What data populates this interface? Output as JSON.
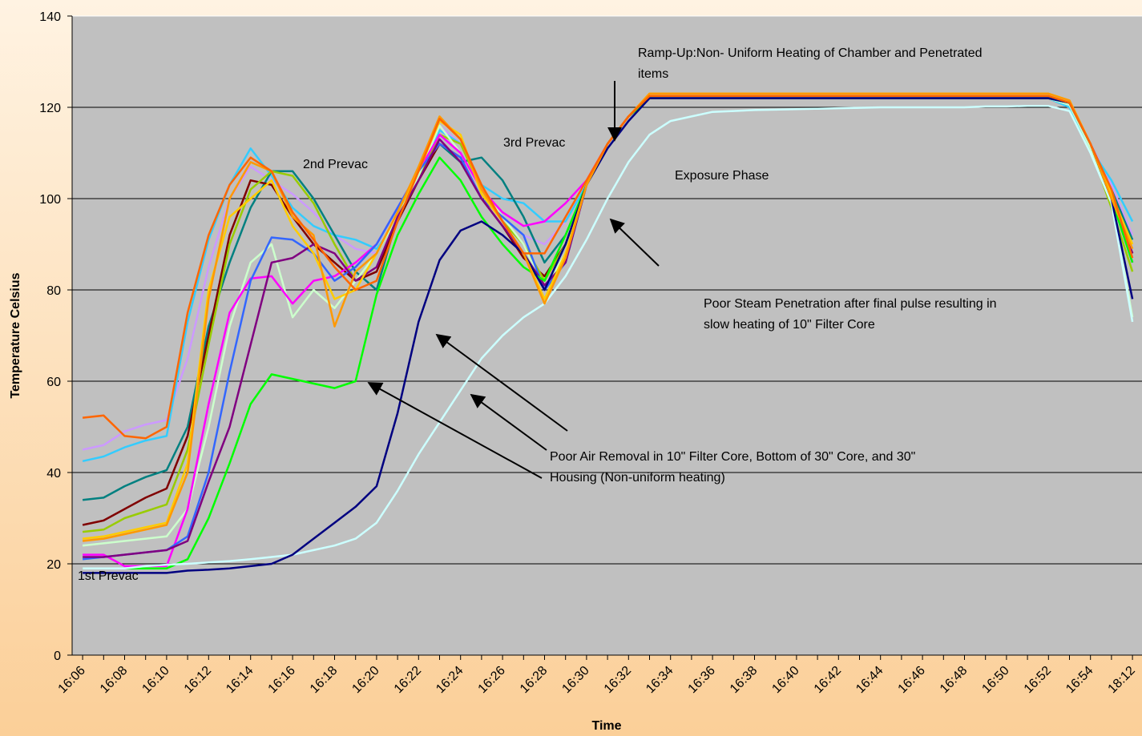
{
  "chart_data": {
    "type": "line",
    "xlabel": "Time",
    "ylabel": "Temperature Celsius",
    "ylim": [
      0,
      140
    ],
    "yticks": [
      0,
      20,
      40,
      60,
      80,
      100,
      120,
      140
    ],
    "grid": true,
    "categories": [
      "16:06",
      null,
      "16:08",
      null,
      "16:10",
      null,
      "16:12",
      null,
      "16:14",
      null,
      "16:16",
      null,
      "16:18",
      null,
      "16:20",
      null,
      "16:22",
      null,
      "16:24",
      null,
      "16:26",
      null,
      "16:28",
      null,
      "16:30",
      null,
      "16:32",
      null,
      "16:34",
      null,
      "16:36",
      null,
      "16:38",
      null,
      "16:40",
      null,
      "16:42",
      null,
      "16:44",
      null,
      "16:46",
      null,
      "16:48",
      null,
      "16:50",
      null,
      "16:52",
      null,
      "16:54",
      null,
      "18:12"
    ],
    "annotations": [
      [
        "1st Prevac"
      ],
      [
        "2nd Prevac"
      ],
      [
        "3rd Prevac"
      ],
      [
        "Exposure Phase"
      ],
      [
        "Ramp-Up:Non- Uniform Heating of Chamber and Penetrated",
        "items"
      ],
      [
        "Poor Steam Penetration after final pulse resulting in",
        "slow heating of 10\"  Filter Core"
      ],
      [
        "Poor Air Removal in 10\" Filter Core, Bottom of 30\" Core, and 30\"",
        "Housing (Non-uniform heating)"
      ]
    ],
    "series": [
      {
        "color": "#cc99ff",
        "values": [
          45,
          46,
          49,
          50.5,
          51.5,
          65,
          85,
          100,
          107,
          104,
          101,
          97,
          92,
          89,
          88,
          96,
          105,
          116,
          112,
          102,
          96,
          92,
          90,
          95,
          104,
          112,
          118,
          122,
          122,
          122,
          122,
          122,
          122,
          122,
          122,
          122,
          122,
          122,
          122,
          122,
          122,
          122,
          122,
          122,
          122,
          122,
          122,
          121,
          112,
          103,
          92
        ]
      },
      {
        "color": "#33ccff",
        "values": [
          42.5,
          43.5,
          45.5,
          47,
          48,
          73,
          91,
          103,
          111,
          105,
          98,
          94,
          92,
          91,
          89,
          95,
          104,
          115,
          112,
          103,
          100,
          99,
          95,
          95,
          103,
          112,
          118,
          122,
          122,
          122,
          122,
          122,
          122,
          122,
          122,
          122,
          122,
          122,
          122,
          122,
          122,
          122,
          122,
          122,
          122,
          122,
          122,
          120,
          111,
          104,
          95
        ]
      },
      {
        "color": "#008080",
        "values": [
          34,
          34.5,
          37,
          39,
          40.5,
          50,
          72,
          86,
          98,
          106,
          106,
          100,
          92,
          84,
          80,
          96,
          106,
          112,
          108,
          109,
          104,
          96,
          86,
          92,
          103,
          112,
          118,
          122.5,
          122,
          122,
          122,
          122,
          122,
          122,
          122,
          122,
          122,
          122,
          122,
          122,
          122,
          122,
          122,
          122,
          122,
          122,
          122,
          121,
          112,
          102,
          91
        ]
      },
      {
        "color": "#800000",
        "values": [
          28.5,
          29.5,
          32,
          34.5,
          36.5,
          48,
          70,
          92,
          104,
          103,
          96,
          90,
          86,
          82,
          84,
          95,
          104,
          112,
          109,
          100,
          94,
          87,
          83,
          90,
          103,
          112,
          118,
          122.5,
          122,
          122,
          122,
          122,
          122,
          122,
          122,
          122,
          122,
          122,
          122,
          122,
          122,
          122,
          122,
          122,
          122,
          122,
          122,
          121,
          111,
          100,
          88
        ]
      },
      {
        "color": "#99cc00",
        "values": [
          27,
          27.5,
          30,
          31.5,
          33,
          45,
          68,
          90,
          102,
          106,
          105,
          99,
          90,
          82,
          88,
          96,
          104,
          114,
          112,
          102,
          95,
          90,
          82,
          90,
          103,
          112,
          118,
          122.5,
          122,
          122,
          122,
          122,
          122,
          122,
          122,
          122,
          122,
          122,
          122,
          122,
          122,
          122,
          122,
          122,
          122,
          122,
          122,
          121,
          111,
          98,
          84
        ]
      },
      {
        "color": "#ccffcc",
        "values": [
          24,
          24.5,
          25,
          25.5,
          26,
          32,
          50,
          72,
          86,
          90,
          74,
          80,
          76,
          82,
          88,
          96,
          105,
          116,
          110,
          102,
          96,
          90,
          80,
          88,
          103,
          112,
          118,
          122,
          122,
          122,
          122,
          122,
          122,
          122,
          122,
          122,
          122,
          122,
          122,
          122,
          122,
          122,
          122,
          122,
          122,
          122,
          122,
          120.5,
          111,
          100,
          74
        ]
      },
      {
        "color": "#ff00ff",
        "values": [
          22,
          22,
          19.5,
          19.5,
          19.5,
          32,
          55,
          75,
          82.5,
          83,
          77,
          82,
          83,
          86,
          90,
          98,
          106,
          114,
          110,
          102,
          97,
          94,
          95,
          99,
          104,
          112,
          118,
          122,
          122,
          122,
          122,
          122,
          122,
          122,
          122,
          122,
          122,
          122,
          122,
          122,
          122,
          122,
          122,
          122,
          122,
          122,
          122,
          121,
          112,
          100,
          86
        ]
      },
      {
        "color": "#3366ff",
        "values": [
          21,
          21.5,
          22,
          22.5,
          23,
          26,
          40,
          62,
          82,
          91.5,
          91,
          88,
          82,
          85,
          90,
          98,
          106,
          112,
          109,
          100,
          96,
          92,
          80,
          86,
          103,
          112,
          118,
          122,
          122,
          122,
          122,
          122,
          122,
          122,
          122,
          122,
          122,
          122,
          122,
          122,
          122,
          122,
          122,
          122,
          122,
          122,
          122,
          121,
          112,
          100,
          86
        ]
      },
      {
        "color": "#800080",
        "values": [
          21.5,
          21.5,
          22,
          22.5,
          23,
          25,
          38,
          50,
          68,
          86,
          87,
          90,
          88,
          82,
          85,
          96,
          104,
          113,
          108,
          100,
          94,
          88,
          81,
          86,
          103,
          112,
          118,
          122,
          122,
          122,
          122,
          122,
          122,
          122,
          122,
          122,
          122,
          122,
          122,
          122,
          122,
          122,
          122,
          122,
          122,
          122,
          122,
          121,
          112,
          100,
          88
        ]
      },
      {
        "color": "#00ff00",
        "values": [
          19,
          19,
          19,
          19,
          19,
          21,
          30,
          42,
          55,
          61.5,
          60.5,
          59.5,
          58.5,
          60,
          79,
          92,
          101,
          109,
          104,
          96,
          90,
          85,
          82,
          92,
          103,
          112,
          118,
          122,
          122,
          122,
          122,
          122,
          122,
          122,
          122,
          122,
          122,
          122,
          122,
          122,
          122,
          122,
          122,
          122,
          122,
          122,
          122,
          121,
          112,
          100,
          86
        ]
      },
      {
        "color": "#ccffff",
        "values": [
          19,
          19,
          19,
          19.5,
          19.8,
          20,
          20.3,
          20.6,
          21,
          21.5,
          22,
          23,
          24,
          25.5,
          29,
          36,
          44,
          51,
          58,
          65,
          70,
          74,
          77,
          83,
          91,
          100,
          108,
          114,
          117,
          118,
          119,
          119.2,
          119.4,
          119.5,
          119.6,
          119.7,
          119.8,
          119.9,
          120,
          120,
          120,
          120,
          120,
          120.2,
          120.2,
          120.3,
          120.3,
          119.2,
          110,
          99,
          73
        ]
      },
      {
        "color": "#000080",
        "values": [
          18,
          18,
          18,
          18,
          18,
          18.5,
          18.7,
          19,
          19.5,
          20,
          22,
          25.5,
          29,
          32.5,
          37,
          53,
          73,
          86.5,
          93,
          95,
          92,
          88,
          80,
          90,
          103,
          111,
          117,
          122,
          122,
          122,
          122,
          122,
          122,
          122,
          122,
          122,
          122,
          122,
          122,
          122,
          122,
          122,
          122,
          122,
          122,
          122,
          122,
          121,
          112,
          100,
          78
        ]
      },
      {
        "color": "#ffcc00",
        "values": [
          25.5,
          26,
          27,
          28,
          29,
          42,
          80,
          96,
          100,
          104,
          94,
          88,
          78,
          80,
          88,
          97,
          106,
          117,
          114,
          101,
          95,
          88,
          78,
          88,
          103,
          112,
          118,
          123,
          123,
          123,
          123,
          123,
          123,
          123,
          123,
          123,
          123,
          123,
          123,
          123,
          123,
          123,
          123,
          123,
          123,
          123,
          123,
          121.5,
          112,
          101,
          90
        ]
      },
      {
        "color": "#ff9900",
        "values": [
          25,
          25.5,
          26.5,
          27.5,
          28.5,
          40,
          78,
          100,
          108,
          106,
          96,
          92,
          72,
          84,
          88,
          97,
          107,
          118,
          113,
          102,
          95,
          88,
          77,
          87,
          103,
          112,
          118,
          123,
          123,
          123,
          123,
          123,
          123,
          123,
          123,
          123,
          123,
          123,
          123,
          123,
          123,
          123,
          123,
          123,
          123,
          123,
          123,
          121.5,
          112,
          100,
          89
        ]
      },
      {
        "color": "#ff6600",
        "values": [
          52,
          52.5,
          48,
          47.5,
          50,
          75,
          92,
          103,
          109,
          106,
          97,
          91,
          85,
          80,
          82,
          95,
          106,
          117.5,
          113,
          103,
          95,
          88,
          88,
          96,
          104,
          112,
          118,
          122.5,
          122.5,
          122.5,
          122.5,
          122.5,
          122.5,
          122.5,
          122.5,
          122.5,
          122.5,
          122.5,
          122.5,
          122.5,
          122.5,
          122.5,
          122.5,
          122.5,
          122.5,
          122.5,
          122.5,
          121,
          112,
          102,
          87
        ]
      }
    ]
  }
}
